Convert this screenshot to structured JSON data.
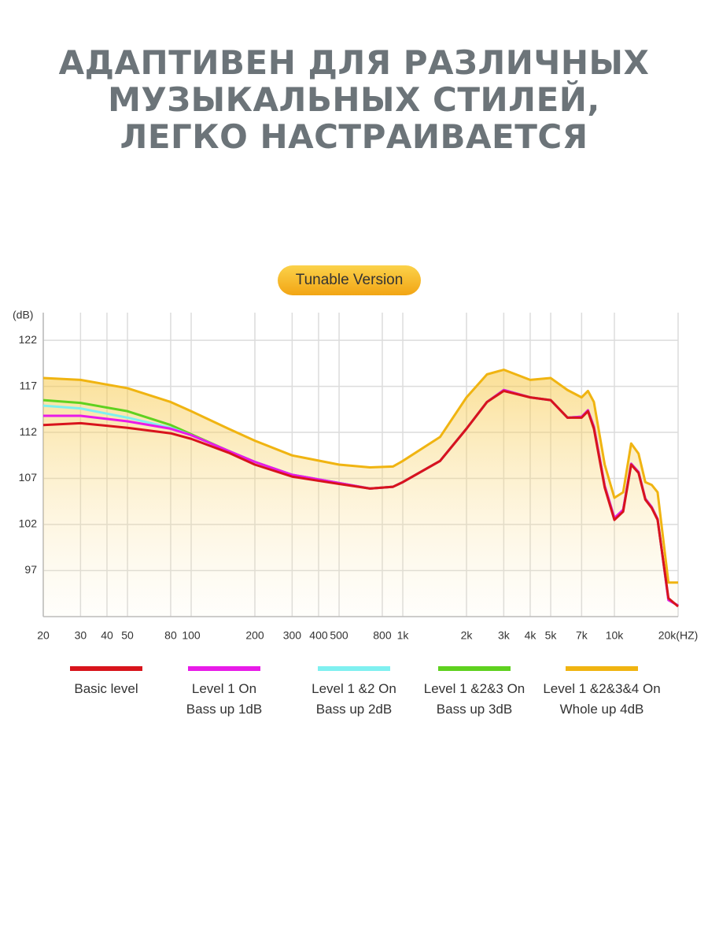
{
  "chart_data": {
    "type": "line",
    "title_lines": [
      "АДАПТИВЕН ДЛЯ РАЗЛИЧНЫХ",
      "МУЗЫКАЛЬНЫХ СТИЛЕЙ,",
      "ЛЕГКО НАСТРАИВАЕТСЯ"
    ],
    "badge": "Tunable Version",
    "y_label": "(dB)",
    "x_scale": "log",
    "grid": true,
    "xlim": [
      20,
      20000
    ],
    "ylim": [
      92,
      125
    ],
    "yticks": [
      97,
      102,
      107,
      112,
      117,
      122
    ],
    "xticks": [
      20,
      30,
      40,
      50,
      80,
      100,
      200,
      300,
      400,
      500,
      800,
      {
        "value": 1000,
        "label": "1k"
      },
      {
        "value": 2000,
        "label": "2k"
      },
      {
        "value": 3000,
        "label": "3k"
      },
      {
        "value": 4000,
        "label": "4k"
      },
      {
        "value": 5000,
        "label": "5k"
      },
      {
        "value": 7000,
        "label": "7k"
      },
      {
        "value": 10000,
        "label": "10k"
      },
      {
        "value": 20000,
        "label": "20k(HZ)"
      }
    ],
    "x": [
      20,
      30,
      50,
      80,
      100,
      150,
      200,
      300,
      500,
      700,
      900,
      1000,
      1500,
      2000,
      2500,
      3000,
      4000,
      5000,
      6000,
      7000,
      7500,
      8000,
      9000,
      10000,
      11000,
      12000,
      13000,
      14000,
      15000,
      16000,
      18000,
      20000
    ],
    "series": [
      {
        "name": "Level 1 &2&3&4 On\nWhole up 4dB",
        "color": "#f0b411",
        "values": [
          117.9,
          117.7,
          116.8,
          115.3,
          114.3,
          112.4,
          111.1,
          109.5,
          108.5,
          108.2,
          108.3,
          108.9,
          111.5,
          115.8,
          118.3,
          118.8,
          117.7,
          117.9,
          116.6,
          115.8,
          116.5,
          115.3,
          108.5,
          104.9,
          105.5,
          110.8,
          109.7,
          106.6,
          106.3,
          105.5,
          95.7,
          95.7
        ]
      },
      {
        "name": "Level 1 &2&3 On\nBass up 3dB",
        "color": "#5fd11f",
        "values": [
          115.5,
          115.2,
          114.3,
          112.8,
          111.8,
          110.0,
          108.8,
          107.4,
          106.5,
          105.9,
          106.1,
          106.6,
          108.9,
          112.4,
          115.3,
          116.6,
          115.8,
          115.5,
          113.6,
          113.7,
          114.4,
          112.6,
          106.2,
          102.7,
          103.6,
          108.6,
          107.7,
          104.8,
          103.9,
          102.6,
          93.8,
          93.2
        ]
      },
      {
        "name": "Level 1 &2 On\nBass up 2dB",
        "color": "#7ff0f0",
        "values": [
          114.9,
          114.6,
          113.6,
          112.5,
          111.7,
          110.0,
          108.8,
          107.4,
          106.5,
          105.9,
          106.1,
          106.6,
          108.9,
          112.4,
          115.3,
          116.6,
          115.8,
          115.5,
          113.6,
          113.7,
          114.4,
          112.6,
          106.2,
          102.7,
          103.6,
          108.6,
          107.7,
          104.8,
          103.9,
          102.6,
          93.8,
          93.2
        ]
      },
      {
        "name": "Level 1 On\nBass up 1dB",
        "color": "#e81be8",
        "values": [
          113.8,
          113.8,
          113.2,
          112.4,
          111.7,
          110.0,
          108.8,
          107.4,
          106.5,
          105.9,
          106.1,
          106.6,
          108.9,
          112.4,
          115.3,
          116.6,
          115.8,
          115.5,
          113.6,
          113.7,
          114.4,
          112.6,
          106.2,
          102.7,
          103.6,
          108.6,
          107.7,
          104.8,
          103.9,
          102.6,
          93.8,
          93.2
        ]
      },
      {
        "name": "Basic level",
        "color": "#d8141c",
        "values": [
          112.8,
          113.0,
          112.5,
          111.9,
          111.3,
          109.8,
          108.5,
          107.2,
          106.4,
          105.9,
          106.1,
          106.6,
          108.9,
          112.4,
          115.3,
          116.5,
          115.8,
          115.5,
          113.6,
          113.6,
          114.3,
          112.4,
          106.0,
          102.5,
          103.4,
          108.5,
          107.6,
          104.7,
          103.8,
          102.5,
          94.0,
          93.1
        ]
      }
    ]
  }
}
